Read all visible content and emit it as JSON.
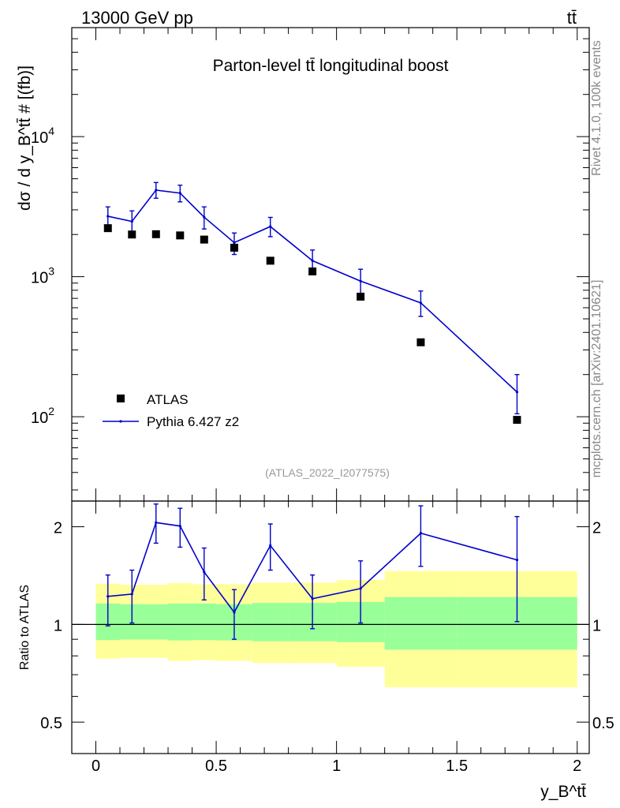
{
  "header": {
    "left_label": "13000 GeV pp",
    "right_label": "tt̄"
  },
  "side_labels": {
    "version": "Rivet 4.1.0,  100k events",
    "source": "mcplots.cern.ch [arXiv:2401.10621]"
  },
  "colors": {
    "data": "#000000",
    "mc": "#0000cc",
    "band_inner": "#99ff99",
    "band_outer": "#ffff99",
    "analysis_id": "#999999"
  },
  "chart_data": [
    {
      "type": "line",
      "title": "Parton-level tt̄ longitudinal boost",
      "ylabel": "dσ / d y_B^tt̄ # [(fb)]",
      "yscale": "log",
      "ylim": [
        25,
        60000
      ],
      "xlim": [
        -0.1,
        2.05
      ],
      "yticks": [
        100,
        1000,
        10000
      ],
      "ytick_labels": [
        {
          "base": "10",
          "exp": "2"
        },
        {
          "base": "10",
          "exp": "3"
        },
        {
          "base": "10",
          "exp": "4"
        }
      ],
      "analysis_id": "(ATLAS_2022_I2077575)",
      "legend": [
        {
          "label": "ATLAS",
          "marker": "square"
        },
        {
          "label": "Pythia 6.427 z2",
          "marker": "line"
        }
      ],
      "series": [
        {
          "name": "ATLAS",
          "style": "markers",
          "x": [
            0.05,
            0.15,
            0.25,
            0.35,
            0.45,
            0.575,
            0.725,
            0.9,
            1.1,
            1.35,
            1.75
          ],
          "values": [
            2220,
            2000,
            2010,
            1970,
            1840,
            1610,
            1300,
            1090,
            720,
            340,
            95
          ]
        },
        {
          "name": "Pythia 6.427 z2",
          "style": "line",
          "x": [
            0.05,
            0.15,
            0.25,
            0.35,
            0.45,
            0.575,
            0.725,
            0.9,
            1.1,
            1.35,
            1.75
          ],
          "values": [
            2700,
            2480,
            4150,
            3950,
            2660,
            1750,
            2280,
            1300,
            930,
            650,
            150
          ],
          "err_up": [
            3150,
            2950,
            4700,
            4500,
            3150,
            2050,
            2650,
            1550,
            1130,
            790,
            200
          ],
          "err_down": [
            2270,
            2020,
            3630,
            3420,
            2190,
            1440,
            1930,
            1060,
            740,
            520,
            105
          ]
        }
      ]
    },
    {
      "type": "area",
      "ylabel": "Ratio to ATLAS",
      "xlabel": "y_B^tt̄",
      "yscale": "log",
      "ylim": [
        0.4,
        2.4
      ],
      "xlim": [
        -0.1,
        2.05
      ],
      "xticks": [
        0,
        0.5,
        1,
        1.5,
        2
      ],
      "xtick_labels": [
        "0",
        "0.5",
        "1",
        "1.5",
        "2"
      ],
      "yticks": [
        0.5,
        1,
        2
      ],
      "ytick_labels": [
        "0.5",
        "1",
        "2"
      ],
      "bins": [
        0,
        0.1,
        0.2,
        0.3,
        0.4,
        0.5,
        0.65,
        0.8,
        1.0,
        1.2,
        1.5,
        2.0
      ],
      "band_inner": {
        "low": [
          0.895,
          0.898,
          0.898,
          0.893,
          0.895,
          0.893,
          0.888,
          0.888,
          0.882,
          0.836,
          0.836
        ],
        "high": [
          1.16,
          1.155,
          1.153,
          1.16,
          1.16,
          1.155,
          1.165,
          1.165,
          1.173,
          1.215,
          1.215
        ]
      },
      "band_outer": {
        "low": [
          0.784,
          0.789,
          0.789,
          0.772,
          0.776,
          0.772,
          0.76,
          0.76,
          0.74,
          0.64,
          0.64
        ],
        "high": [
          1.335,
          1.325,
          1.325,
          1.34,
          1.33,
          1.33,
          1.345,
          1.345,
          1.37,
          1.46,
          1.46
        ]
      },
      "series": [
        {
          "name": "Pythia 6.427 z2 / ATLAS",
          "x": [
            0.05,
            0.15,
            0.25,
            0.35,
            0.45,
            0.575,
            0.725,
            0.9,
            1.1,
            1.35,
            1.75
          ],
          "values": [
            1.22,
            1.24,
            2.06,
            2.01,
            1.45,
            1.09,
            1.75,
            1.2,
            1.29,
            1.91,
            1.58
          ],
          "err_up": [
            1.42,
            1.47,
            2.35,
            2.28,
            1.72,
            1.28,
            2.04,
            1.42,
            1.57,
            2.32,
            2.15
          ],
          "err_down": [
            0.99,
            1.01,
            1.78,
            1.73,
            1.19,
            0.9,
            1.47,
            0.97,
            1.01,
            1.51,
            1.02
          ]
        }
      ]
    }
  ]
}
